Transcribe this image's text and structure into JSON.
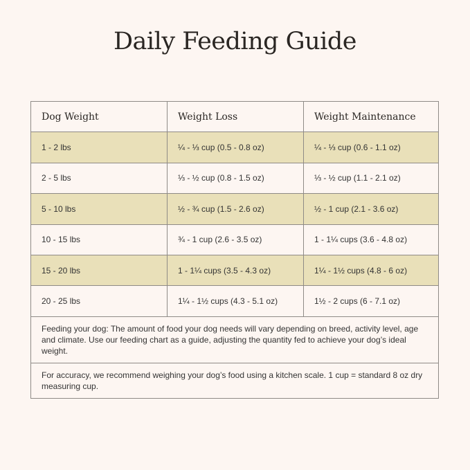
{
  "title": "Daily Feeding Guide",
  "table": {
    "headers": [
      "Dog Weight",
      "Weight Loss",
      "Weight Maintenance"
    ],
    "rows": [
      [
        "1 - 2 lbs",
        "¼ - ⅓ cup (0.5 - 0.8 oz)",
        "¼ - ⅓ cup (0.6 - 1.1 oz)"
      ],
      [
        "2 - 5 lbs",
        "⅓ - ½ cup (0.8 - 1.5 oz)",
        "⅓ - ½ cup (1.1 - 2.1 oz)"
      ],
      [
        "5 - 10 lbs",
        "½ - ¾ cup (1.5 - 2.6 oz)",
        "½ - 1 cup (2.1 - 3.6 oz)"
      ],
      [
        "10 - 15 lbs",
        "¾ - 1 cup (2.6 - 3.5 oz)",
        "1 - 1¼ cups (3.6 - 4.8 oz)"
      ],
      [
        "15 - 20 lbs",
        "1 - 1¼ cups (3.5 - 4.3 oz)",
        "1¼ - 1½ cups (4.8 - 6 oz)"
      ],
      [
        "20 - 25 lbs",
        "1¼ - 1½ cups (4.3 - 5.1 oz)",
        "1½ - 2 cups (6 - 7.1 oz)"
      ]
    ],
    "notes": [
      "Feeding your dog: The amount of food your dog needs will vary depending on breed, activity level, age and climate. Use our feeding chart as a guide, adjusting the quantity fed to achieve your dog’s ideal weight.",
      "For accuracy, we recommend weighing your dog’s food using a kitchen scale. 1 cup = standard 8 oz dry measuring cup."
    ]
  },
  "colors": {
    "background": "#fdf6f2",
    "stripe": "#e9e0b9",
    "border": "#8e8a86"
  }
}
